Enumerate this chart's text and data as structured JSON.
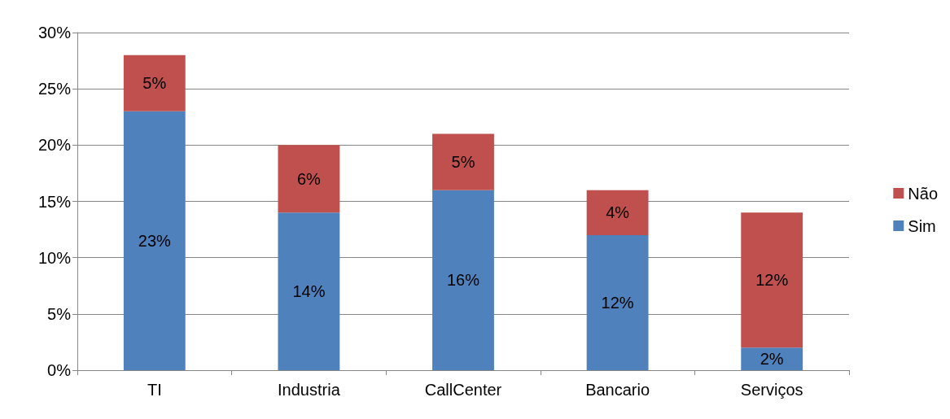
{
  "chart_data": {
    "type": "bar",
    "stacked": true,
    "categories": [
      "TI",
      "Industria",
      "CallCenter",
      "Bancario",
      "Serviços"
    ],
    "series": [
      {
        "name": "Sim",
        "color": "#4f81bd",
        "values": [
          23,
          14,
          16,
          12,
          2
        ],
        "value_labels": [
          "23%",
          "14%",
          "16%",
          "12%",
          "2%"
        ]
      },
      {
        "name": "Não",
        "color": "#c0504d",
        "values": [
          5,
          6,
          5,
          4,
          12
        ],
        "value_labels": [
          "5%",
          "6%",
          "5%",
          "4%",
          "12%"
        ]
      }
    ],
    "ylim": [
      0,
      30
    ],
    "yticks": [
      {
        "value": 0,
        "label": "0%"
      },
      {
        "value": 5,
        "label": "5%"
      },
      {
        "value": 10,
        "label": "10%"
      },
      {
        "value": 15,
        "label": "15%"
      },
      {
        "value": 20,
        "label": "20%"
      },
      {
        "value": 25,
        "label": "25%"
      },
      {
        "value": 30,
        "label": "30%"
      }
    ],
    "grid": "y",
    "legend": "right"
  }
}
